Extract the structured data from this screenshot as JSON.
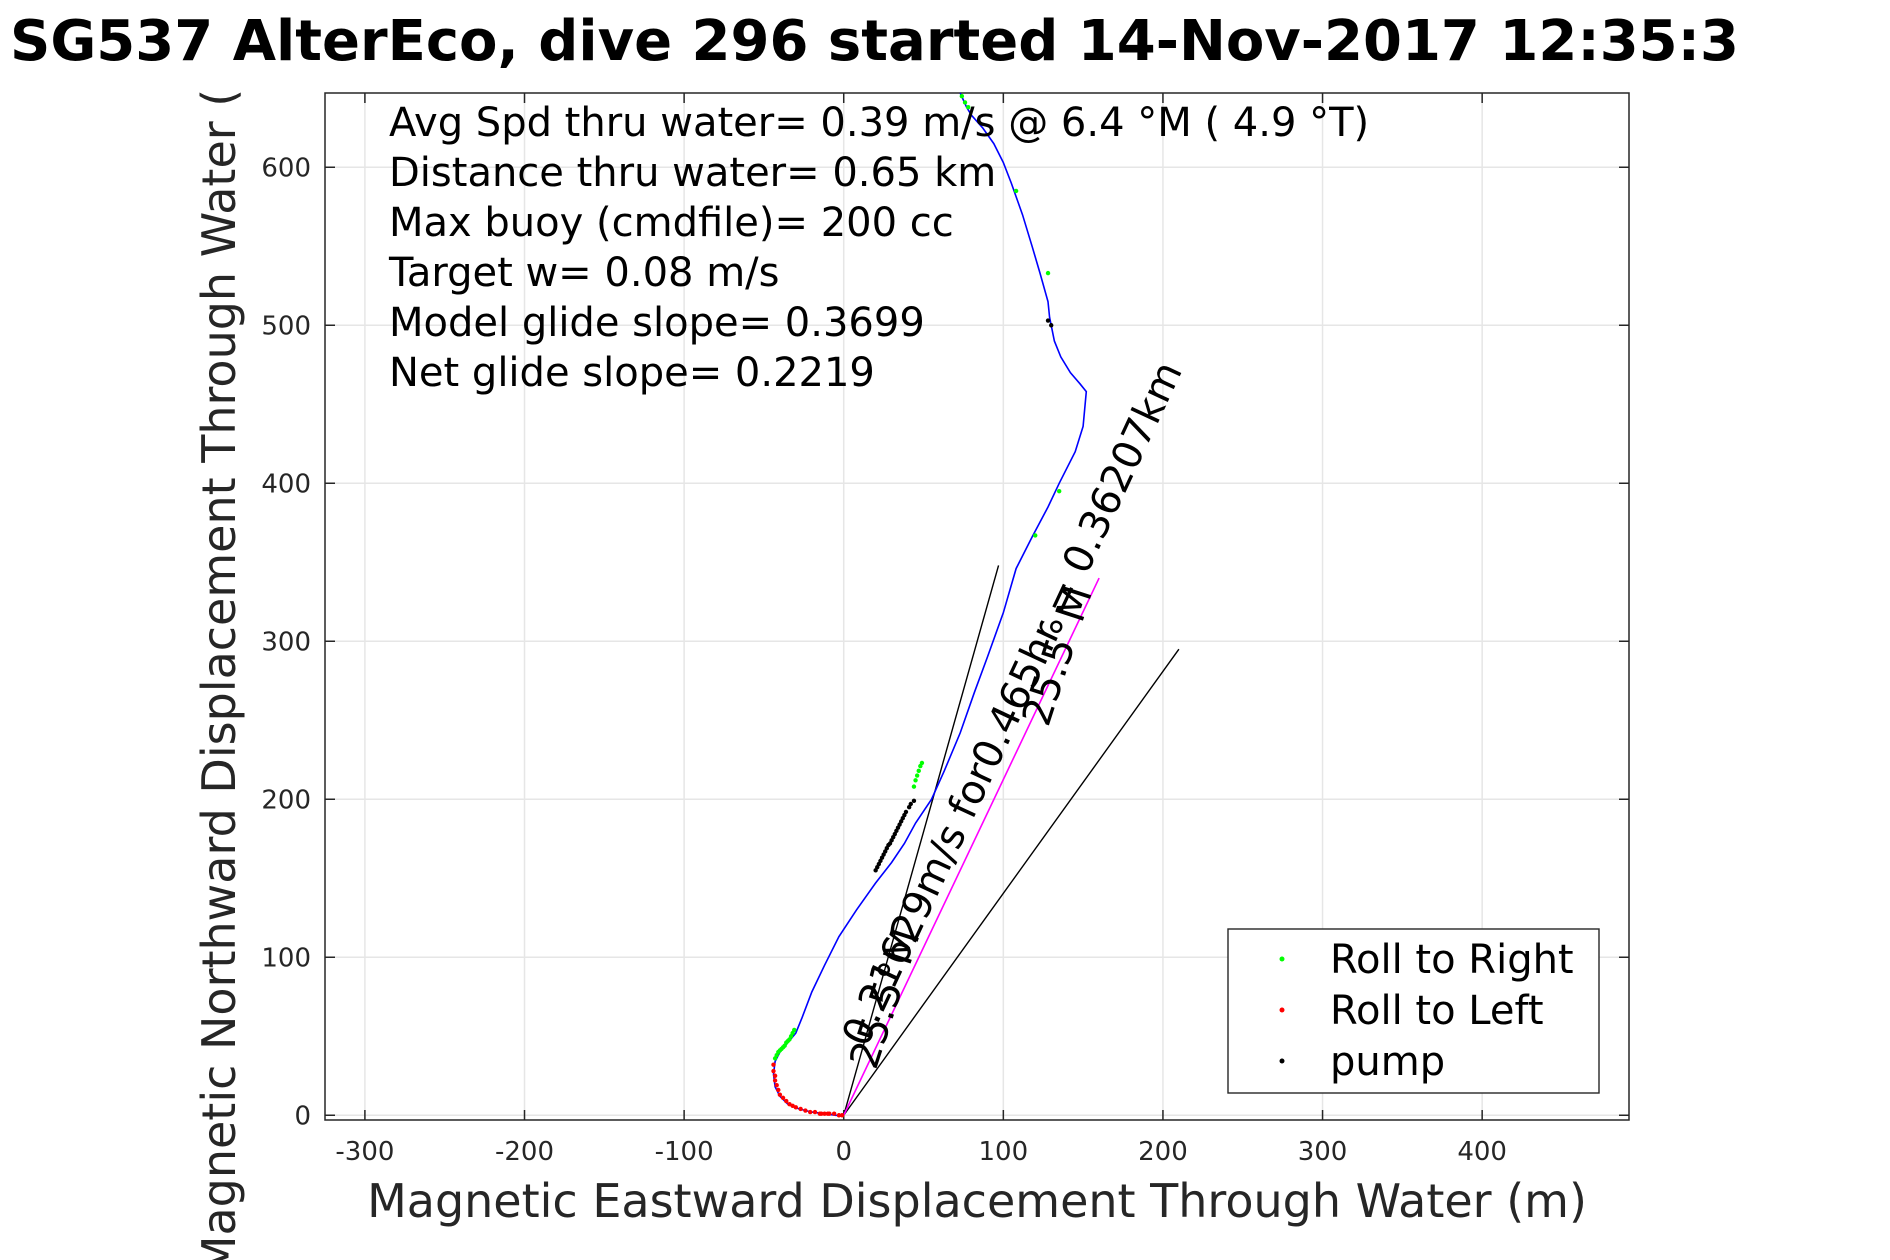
{
  "chart_data": {
    "type": "scatter",
    "title": "SG537 AlterEco, dive 296 started 14-Nov-2017 12:35:3",
    "xlabel": "Magnetic Eastward Displacement Through Water (m)",
    "ylabel": "Magnetic Northward Displacement Through Water (",
    "xlim": [
      -325,
      492
    ],
    "ylim": [
      -3,
      647
    ],
    "xticks": [
      -300,
      -200,
      -100,
      0,
      100,
      200,
      300,
      400
    ],
    "xtick_labels": [
      "-300",
      "-200",
      "-100",
      "0",
      "100",
      "200",
      "300",
      "400"
    ],
    "yticks": [
      0,
      100,
      200,
      300,
      400,
      500,
      600
    ],
    "ytick_labels": [
      "0",
      "100",
      "200",
      "300",
      "400",
      "500",
      "600"
    ],
    "grid": true,
    "stats": [
      "Avg Spd thru water=  0.39 m/s @   6.4 °M (  4.9 °T)",
      "Distance thru water=  0.65 km",
      "Max buoy (cmdfile)= 200 cc",
      "Target w= 0.08 m/s",
      "Model glide slope= 0.3699",
      "Net glide slope= 0.2219"
    ],
    "track": {
      "x": [
        0,
        -5,
        -12,
        -20,
        -28,
        -35,
        -40,
        -43,
        -44,
        -43,
        -40,
        -35,
        -30,
        -26,
        -20,
        -12,
        -3,
        8,
        20,
        30,
        38,
        45,
        55,
        63,
        73,
        82,
        90,
        100,
        108,
        118,
        128,
        135,
        145,
        150,
        152,
        148,
        142,
        136,
        132,
        130,
        129,
        128,
        123,
        118,
        112,
        105,
        100,
        94,
        87,
        80,
        77,
        73
      ],
      "y": [
        0,
        0,
        1,
        2,
        4,
        7,
        12,
        18,
        26,
        34,
        40,
        46,
        52,
        62,
        78,
        95,
        113,
        130,
        147,
        160,
        172,
        185,
        200,
        218,
        242,
        268,
        290,
        318,
        346,
        366,
        385,
        400,
        420,
        436,
        458,
        463,
        470,
        480,
        490,
        500,
        505,
        515,
        533,
        550,
        570,
        590,
        603,
        615,
        625,
        633,
        638,
        647
      ]
    },
    "roll_right": {
      "x": [
        -43,
        -42,
        -41,
        -40,
        -39,
        -38,
        -37,
        -36,
        -35,
        -34,
        -33,
        -32,
        -31,
        44,
        45,
        46,
        47,
        48,
        49,
        120,
        135,
        108,
        128,
        78,
        76,
        74
      ],
      "y": [
        36,
        38,
        40,
        41,
        42,
        43,
        44,
        46,
        47,
        48,
        50,
        52,
        54,
        208,
        212,
        215,
        218,
        221,
        223,
        367,
        395,
        585,
        533,
        638,
        641,
        645
      ]
    },
    "roll_left": {
      "x": [
        -44,
        -44,
        -43,
        -43,
        -42,
        -41,
        -40,
        -38,
        -36,
        -34,
        -32,
        -30,
        -27,
        -24,
        -21,
        -18,
        -15,
        -12,
        -9,
        -6,
        -3,
        -1,
        -10,
        -14
      ],
      "y": [
        32,
        28,
        25,
        22,
        19,
        16,
        13,
        11,
        9,
        7,
        6,
        5,
        4,
        3,
        2,
        2,
        1,
        1,
        1,
        1,
        0,
        0,
        1,
        1
      ]
    },
    "pump": {
      "x": [
        20,
        21,
        22,
        23,
        24,
        25,
        26,
        27,
        28,
        29,
        30,
        31,
        32,
        33,
        34,
        35,
        36,
        37,
        38,
        39,
        41,
        42,
        44,
        128,
        130
      ],
      "y": [
        155,
        157,
        159,
        161,
        163,
        165,
        167,
        169,
        171,
        172,
        174,
        176,
        178,
        180,
        182,
        184,
        186,
        188,
        190,
        192,
        195,
        197,
        199,
        503,
        500
      ]
    },
    "lines": [
      {
        "x": [
          0,
          97
        ],
        "y": [
          0,
          348
        ]
      },
      {
        "x": [
          0,
          210
        ],
        "y": [
          0,
          295
        ]
      },
      {
        "x": [
          0,
          160
        ],
        "y": [
          0,
          340
        ]
      }
    ],
    "annotations": [
      {
        "text": "25.5°M",
        "x": 20,
        "y": 28,
        "angle": -72
      },
      {
        "text": "25.5°M",
        "x": 128,
        "y": 245,
        "angle": -72
      },
      {
        "text": "0.21629m/s for0.465hr = 0.36207km",
        "x": 14,
        "y": 42,
        "angle": -65
      }
    ],
    "legend": {
      "position": "bottom-right",
      "entries": [
        {
          "label": "Roll to Right",
          "color": "#00ff00"
        },
        {
          "label": "Roll to Left",
          "color": "#ff0000"
        },
        {
          "label": "pump",
          "color": "#000000"
        }
      ]
    },
    "colors": {
      "track": "#0000ff",
      "course_line": "#ff00ff",
      "lines": "#000000",
      "grid": "#e6e6e6",
      "axes": "#262626"
    }
  }
}
